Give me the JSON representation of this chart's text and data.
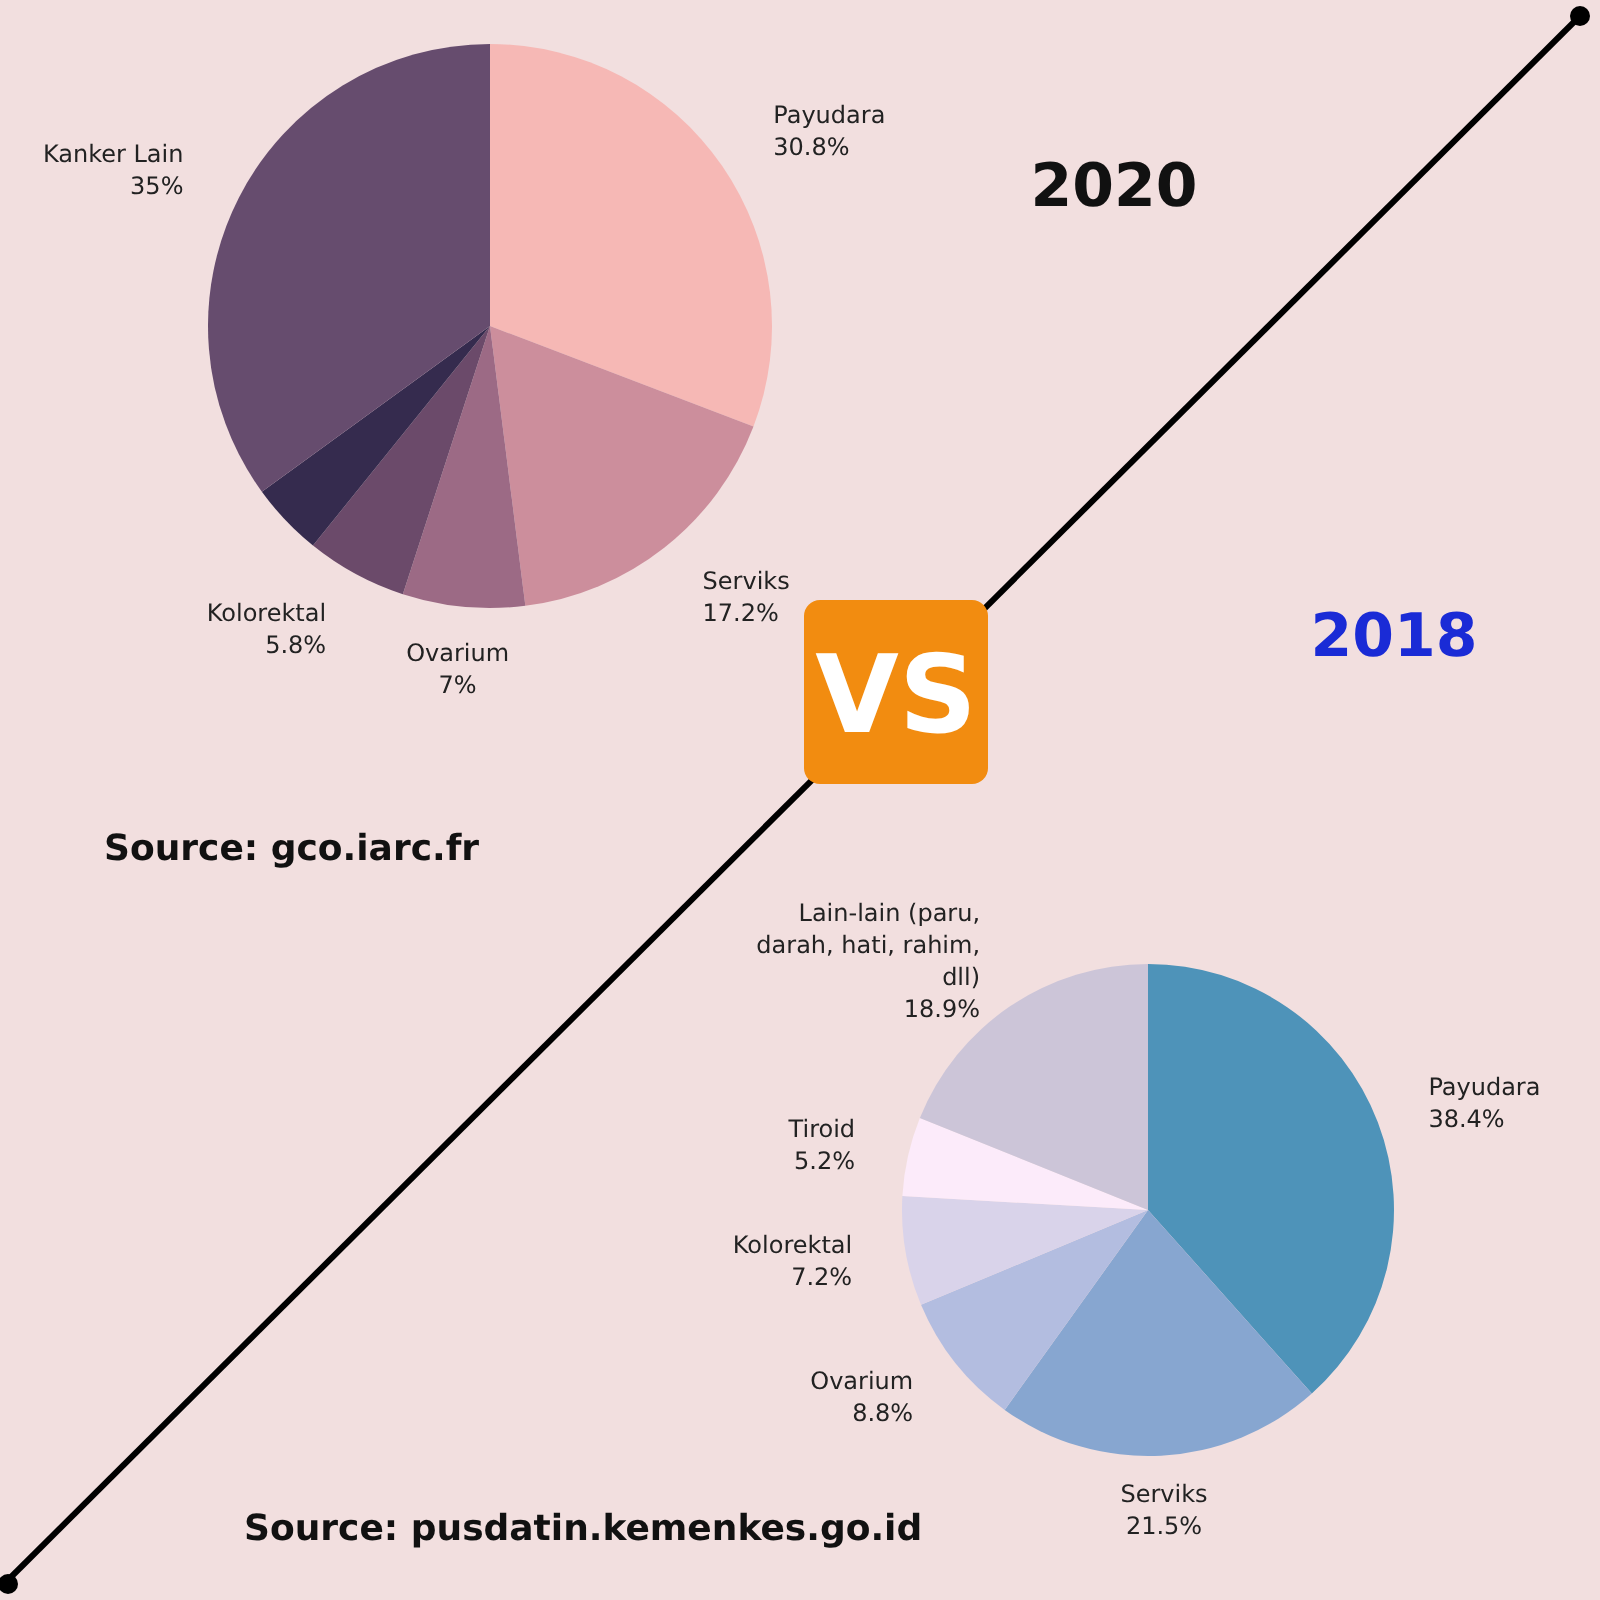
{
  "chart_data": [
    {
      "type": "pie",
      "title": "2020",
      "categories": [
        "Payudara",
        "Serviks",
        "Ovarium",
        "Kolorektal",
        null,
        "Kanker Lain"
      ],
      "values": [
        30.8,
        17.2,
        7,
        5.8,
        4.2,
        35
      ],
      "value_labels": [
        "30.8%",
        "17.2%",
        "7%",
        "5.8%",
        null,
        "35%"
      ],
      "colors": [
        "#f6b8b5",
        "#cc8e9c",
        "#9c6a85",
        "#6b4a6a",
        "#352b4e",
        "#664c6e"
      ],
      "annotations": [
        "Source: gco.iarc.fr",
        "VS"
      ]
    },
    {
      "type": "pie",
      "title": "2018",
      "categories": [
        "Payudara",
        "Serviks",
        "Ovarium",
        "Kolorektal",
        "Tiroid",
        "Lain-lain (paru, darah, hati, rahim, dll)"
      ],
      "values": [
        38.4,
        21.5,
        8.8,
        7.2,
        5.2,
        18.9
      ],
      "value_labels": [
        "38.4%",
        "21.5%",
        "8.8%",
        "7.2%",
        "5.2%",
        "18.9%"
      ],
      "colors": [
        "#4e93b9",
        "#87a6d0",
        "#b3bde0",
        "#d9d3ea",
        "#fcebfa",
        "#ccc5d8"
      ],
      "annotations": [
        "Source: pusdatin.kemenkes.go.id"
      ]
    }
  ]
}
